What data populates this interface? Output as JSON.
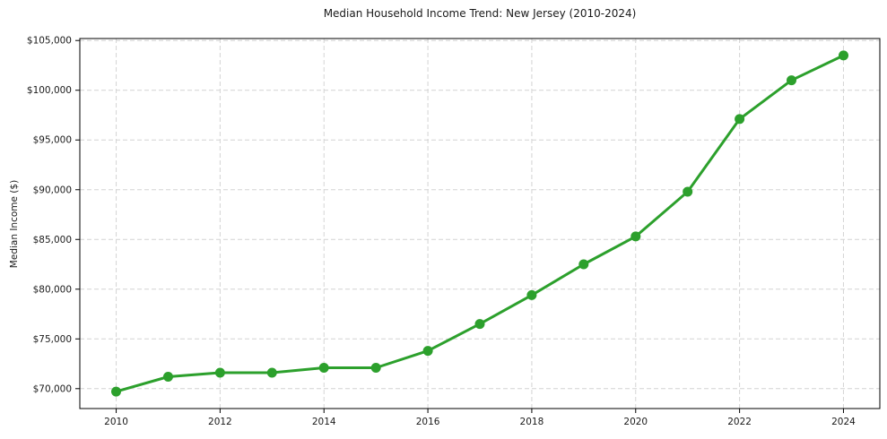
{
  "chart_data": {
    "type": "line",
    "title": "Median Household Income Trend: New Jersey (2010-2024)",
    "xlabel": "",
    "ylabel": "Median Income ($)",
    "series": [
      {
        "name": "Median household income",
        "x": [
          2010,
          2011,
          2012,
          2013,
          2014,
          2015,
          2016,
          2017,
          2018,
          2019,
          2020,
          2021,
          2022,
          2023,
          2024
        ],
        "values": [
          69700,
          71200,
          71600,
          71600,
          72100,
          72100,
          73800,
          76500,
          79400,
          82500,
          85300,
          89800,
          97100,
          101000,
          103500
        ]
      }
    ],
    "xlim": [
      2009.3,
      2024.7
    ],
    "ylim": [
      68000,
      105200
    ],
    "x_ticks": [
      2010,
      2012,
      2014,
      2016,
      2018,
      2020,
      2022,
      2024
    ],
    "x_tick_labels": [
      "2010",
      "2012",
      "2014",
      "2016",
      "2018",
      "2020",
      "2022",
      "2024"
    ],
    "y_ticks": [
      70000,
      75000,
      80000,
      85000,
      90000,
      95000,
      100000,
      105000
    ],
    "y_tick_labels": [
      "$70,000",
      "$75,000",
      "$80,000",
      "$85,000",
      "$90,000",
      "$95,000",
      "$100,000",
      "$105,000"
    ],
    "grid": true,
    "grid_style": "dashed",
    "legend_position": "none",
    "line_color": "#2ca02c",
    "marker_color": "#2ca02c",
    "grid_color": "#d4d4d4",
    "spine_color": "#000000",
    "text_color": "#1a1a1a",
    "background_color": "#ffffff"
  }
}
